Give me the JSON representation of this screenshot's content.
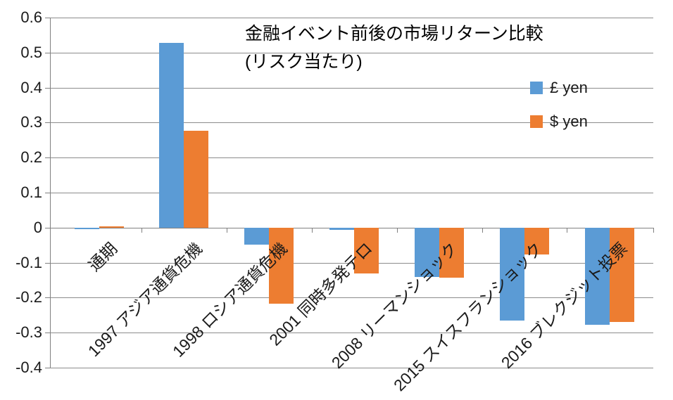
{
  "chart_data": {
    "type": "bar",
    "title": "金融イベント前後の市場リターン比較",
    "subtitle": "(リスク当たり)",
    "categories": [
      "通期",
      "1997 アジア通貨危機",
      "1998 ロシア通貨危機",
      "2001 同時多発テロ",
      "2008 リーマンショック",
      "2015 スイスフランショック",
      "2016 ブレクジット投票"
    ],
    "series": [
      {
        "name": "£ yen",
        "color": "#5B9BD5",
        "values": [
          -0.004,
          0.527,
          -0.049,
          -0.006,
          -0.142,
          -0.266,
          -0.278
        ]
      },
      {
        "name": "$ yen",
        "color": "#ED7D31",
        "values": [
          0.004,
          0.276,
          -0.218,
          -0.131,
          -0.144,
          -0.077,
          -0.269
        ]
      }
    ],
    "ylim": [
      -0.4,
      0.6
    ],
    "ytick_step": 0.1,
    "ytick_labels": [
      "0.6",
      "0.5",
      "0.4",
      "0.3",
      "0.2",
      "0.1",
      "0",
      "-0.1",
      "-0.2",
      "-0.3",
      "-0.4"
    ],
    "grid": true,
    "legend_position": "top-right-inside",
    "colors": {
      "gridline": "#8C8C8C",
      "axis": "#808080",
      "text": "#1a1a1a"
    }
  }
}
